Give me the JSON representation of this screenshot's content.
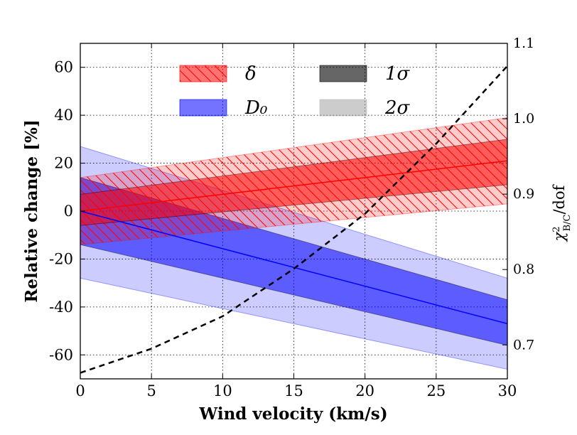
{
  "chart_data": {
    "type": "line",
    "xlabel": "Wind velocity (km/s)",
    "ylabel": "Relative change [%]",
    "y2label": "χ²_B/C/dof",
    "xlim": [
      0,
      30
    ],
    "ylim": [
      -70,
      70
    ],
    "y2lim": [
      0.655,
      1.1
    ],
    "xticks": [
      0,
      5,
      10,
      15,
      20,
      25,
      30
    ],
    "yticks": [
      -60,
      -40,
      -20,
      0,
      20,
      40,
      60
    ],
    "y2ticks": [
      0.7,
      0.8,
      0.9,
      1.0,
      1.1
    ],
    "xtick_labels": [
      "0",
      "5",
      "10",
      "15",
      "20",
      "25",
      "30"
    ],
    "ytick_labels": [
      "-60",
      "-40",
      "-20",
      "0",
      "20",
      "40",
      "60"
    ],
    "y2tick_labels": [
      "0.7",
      "0.8",
      "0.9",
      "1.0",
      "1.1"
    ],
    "grid": true,
    "legend_position": "top",
    "legend": [
      {
        "label": "δ",
        "color": "#ff0000",
        "hatch": true
      },
      {
        "label": "D₀",
        "color": "#0000ff",
        "hatch": false
      },
      {
        "label": "1σ",
        "color": "#000000",
        "hatch": false
      },
      {
        "label": "2σ",
        "color": "#999999",
        "hatch": false
      }
    ],
    "series": [
      {
        "name": "δ",
        "color": "#ff0000",
        "x": [
          0,
          30
        ],
        "y": [
          0,
          21
        ],
        "band_1sigma": {
          "lower": [
            -6,
            11
          ],
          "upper": [
            7,
            30
          ]
        },
        "band_2sigma": {
          "lower": [
            -14,
            3
          ],
          "upper": [
            14,
            39
          ]
        },
        "hatched": true
      },
      {
        "name": "D₀",
        "color": "#0000ff",
        "x": [
          0,
          30
        ],
        "y": [
          0,
          -47
        ],
        "band_1sigma": {
          "lower": [
            -14,
            -56
          ],
          "upper": [
            14,
            -37
          ]
        },
        "band_2sigma": {
          "lower": [
            -28,
            -66
          ],
          "upper": [
            27,
            -28
          ]
        },
        "hatched": false
      },
      {
        "name": "χ²_B/C/dof",
        "axis": "right",
        "style": "dashed",
        "color": "#000000",
        "x": [
          0,
          5,
          10,
          15,
          20,
          25,
          30
        ],
        "y": [
          0.663,
          0.695,
          0.738,
          0.801,
          0.874,
          0.967,
          1.07
        ]
      }
    ]
  }
}
